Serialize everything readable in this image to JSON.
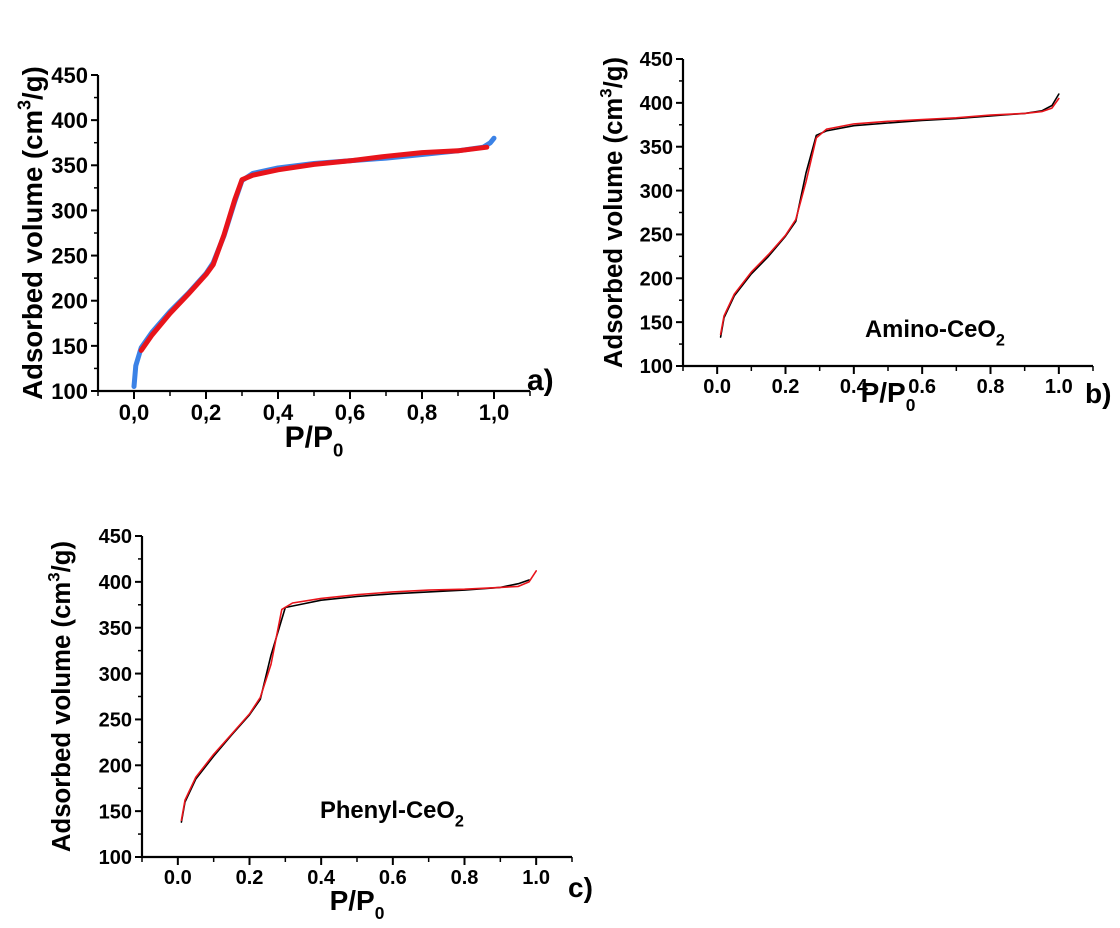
{
  "chart_data": [
    {
      "type": "line",
      "panel_label": "a)",
      "annotation": "",
      "xlabel": {
        "main": "P/P",
        "sub": "0"
      },
      "ylabel": {
        "main": "Adsorbed volume (cm",
        "sup": "3",
        "tail": "/g)"
      },
      "xlim": [
        -0.1,
        1.1
      ],
      "ylim": [
        100,
        450
      ],
      "xticks": [
        0.0,
        0.2,
        0.4,
        0.6,
        0.8,
        1.0
      ],
      "xtick_labels": [
        "0,0",
        "0,2",
        "0,4",
        "0,6",
        "0,8",
        "1,0"
      ],
      "yticks": [
        100,
        150,
        200,
        250,
        300,
        350,
        400,
        450
      ],
      "ytick_labels": [
        "100",
        "150",
        "200",
        "250",
        "300",
        "350",
        "400",
        "450"
      ],
      "series": [
        {
          "color": "#3b82e6",
          "stroke": 5,
          "points": [
            [
              0.0,
              105
            ],
            [
              0.005,
              128
            ],
            [
              0.02,
              148
            ],
            [
              0.05,
              165
            ],
            [
              0.1,
              188
            ],
            [
              0.15,
              208
            ],
            [
              0.2,
              230
            ],
            [
              0.22,
              242
            ],
            [
              0.25,
              272
            ],
            [
              0.28,
              310
            ],
            [
              0.3,
              333
            ],
            [
              0.33,
              341
            ],
            [
              0.4,
              347
            ],
            [
              0.5,
              352
            ],
            [
              0.6,
              355
            ],
            [
              0.7,
              358
            ],
            [
              0.8,
              362
            ],
            [
              0.9,
              366
            ],
            [
              0.97,
              370
            ],
            [
              0.99,
              375
            ],
            [
              1.0,
              380
            ]
          ]
        },
        {
          "color": "#e8141b",
          "stroke": 5,
          "points": [
            [
              0.02,
              145
            ],
            [
              0.05,
              162
            ],
            [
              0.1,
              186
            ],
            [
              0.15,
              207
            ],
            [
              0.2,
              229
            ],
            [
              0.22,
              240
            ],
            [
              0.25,
              273
            ],
            [
              0.28,
              312
            ],
            [
              0.3,
              334
            ],
            [
              0.33,
              339
            ],
            [
              0.4,
              345
            ],
            [
              0.5,
              351
            ],
            [
              0.6,
              355
            ],
            [
              0.7,
              360
            ],
            [
              0.8,
              364
            ],
            [
              0.9,
              366
            ],
            [
              0.98,
              370
            ]
          ]
        }
      ]
    },
    {
      "type": "line",
      "panel_label": "b)",
      "annotation": {
        "main": "Amino-CeO",
        "sub": "2"
      },
      "xlabel": {
        "main": "P/P",
        "sub": "0"
      },
      "ylabel": {
        "main": "Adsorbed volume (cm",
        "sup": "3",
        "tail": "/g)"
      },
      "xlim": [
        -0.1,
        1.1
      ],
      "ylim": [
        100,
        450
      ],
      "xticks": [
        0.0,
        0.2,
        0.4,
        0.6,
        0.8,
        1.0
      ],
      "xtick_labels": [
        "0.0",
        "0.2",
        "0.4",
        "0.6",
        "0.8",
        "1.0"
      ],
      "yticks": [
        100,
        150,
        200,
        250,
        300,
        350,
        400,
        450
      ],
      "ytick_labels": [
        "100",
        "150",
        "200",
        "250",
        "300",
        "350",
        "400",
        "450"
      ],
      "series": [
        {
          "color": "#000000",
          "stroke": 1.6,
          "points": [
            [
              0.01,
              133
            ],
            [
              0.02,
              155
            ],
            [
              0.05,
              180
            ],
            [
              0.1,
              205
            ],
            [
              0.15,
              225
            ],
            [
              0.2,
              248
            ],
            [
              0.23,
              265
            ],
            [
              0.26,
              320
            ],
            [
              0.29,
              363
            ],
            [
              0.32,
              368
            ],
            [
              0.4,
              374
            ],
            [
              0.5,
              377
            ],
            [
              0.6,
              380
            ],
            [
              0.7,
              382
            ],
            [
              0.8,
              385
            ],
            [
              0.9,
              388
            ],
            [
              0.95,
              391
            ],
            [
              0.98,
              397
            ],
            [
              1.0,
              410
            ]
          ]
        },
        {
          "color": "#e8141b",
          "stroke": 1.6,
          "points": [
            [
              0.01,
              136
            ],
            [
              0.02,
              157
            ],
            [
              0.05,
              182
            ],
            [
              0.1,
              207
            ],
            [
              0.15,
              227
            ],
            [
              0.2,
              249
            ],
            [
              0.23,
              267
            ],
            [
              0.26,
              310
            ],
            [
              0.29,
              360
            ],
            [
              0.32,
              370
            ],
            [
              0.4,
              376
            ],
            [
              0.5,
              379
            ],
            [
              0.6,
              381
            ],
            [
              0.7,
              383
            ],
            [
              0.8,
              386
            ],
            [
              0.9,
              388
            ],
            [
              0.95,
              390
            ],
            [
              0.98,
              394
            ],
            [
              1.0,
              405
            ]
          ]
        }
      ]
    },
    {
      "type": "line",
      "panel_label": "c)",
      "annotation": {
        "main": "Phenyl-CeO",
        "sub": "2"
      },
      "xlabel": {
        "main": "P/P",
        "sub": "0"
      },
      "ylabel": {
        "main": "Adsorbed volume (cm",
        "sup": "3",
        "tail": "/g)"
      },
      "xlim": [
        -0.1,
        1.1
      ],
      "ylim": [
        100,
        450
      ],
      "xticks": [
        0.0,
        0.2,
        0.4,
        0.6,
        0.8,
        1.0
      ],
      "xtick_labels": [
        "0.0",
        "0.2",
        "0.4",
        "0.6",
        "0.8",
        "1.0"
      ],
      "yticks": [
        100,
        150,
        200,
        250,
        300,
        350,
        400,
        450
      ],
      "ytick_labels": [
        "100",
        "150",
        "200",
        "250",
        "300",
        "350",
        "400",
        "450"
      ],
      "series": [
        {
          "color": "#000000",
          "stroke": 1.6,
          "points": [
            [
              0.01,
              138
            ],
            [
              0.02,
              160
            ],
            [
              0.05,
              185
            ],
            [
              0.1,
              210
            ],
            [
              0.15,
              233
            ],
            [
              0.2,
              255
            ],
            [
              0.23,
              272
            ],
            [
              0.26,
              320
            ],
            [
              0.3,
              372
            ],
            [
              0.35,
              376
            ],
            [
              0.4,
              380
            ],
            [
              0.5,
              384
            ],
            [
              0.6,
              387
            ],
            [
              0.7,
              389
            ],
            [
              0.8,
              391
            ],
            [
              0.9,
              394
            ],
            [
              0.95,
              398
            ],
            [
              0.98,
              402
            ]
          ]
        },
        {
          "color": "#e8141b",
          "stroke": 1.6,
          "points": [
            [
              0.01,
              140
            ],
            [
              0.02,
              162
            ],
            [
              0.05,
              187
            ],
            [
              0.1,
              212
            ],
            [
              0.15,
              234
            ],
            [
              0.2,
              256
            ],
            [
              0.23,
              274
            ],
            [
              0.26,
              310
            ],
            [
              0.29,
              370
            ],
            [
              0.32,
              377
            ],
            [
              0.4,
              382
            ],
            [
              0.5,
              386
            ],
            [
              0.6,
              389
            ],
            [
              0.7,
              391
            ],
            [
              0.8,
              392
            ],
            [
              0.9,
              394
            ],
            [
              0.95,
              395
            ],
            [
              0.98,
              400
            ],
            [
              1.0,
              412
            ]
          ]
        }
      ]
    }
  ]
}
